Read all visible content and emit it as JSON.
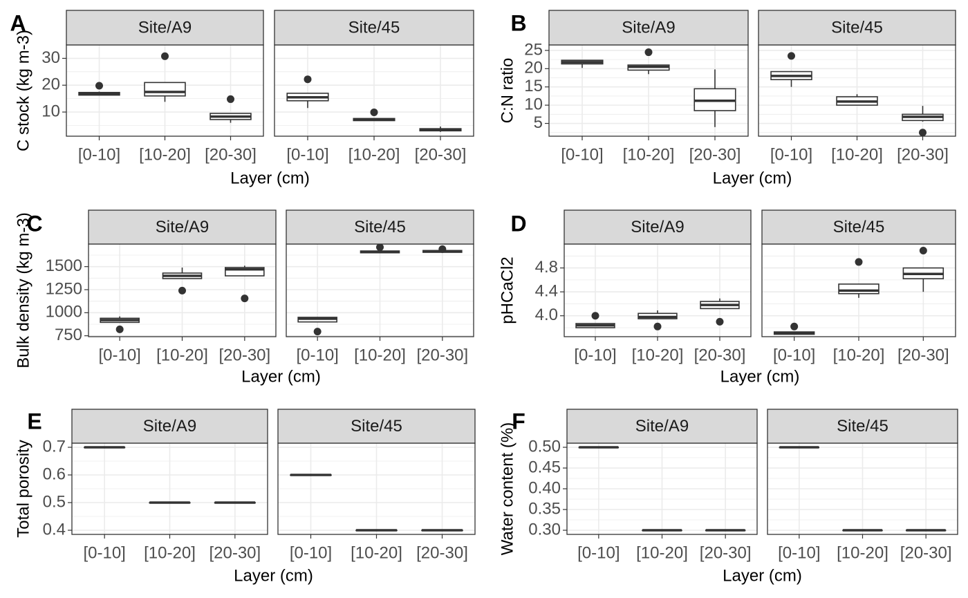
{
  "figure": {
    "x_tick_labels": [
      "[0-10]",
      "[10-20]",
      "[20-30]"
    ],
    "xlabel": "Layer (cm)",
    "facets": [
      "Site/A9",
      "Site/45"
    ]
  },
  "chart_data": [
    {
      "type": "boxplot",
      "panel_letter": "A",
      "ylabel": "C stock (kg m-3)",
      "ylim": [
        1,
        35
      ],
      "yticks": [
        10,
        20,
        30
      ],
      "facets": [
        {
          "facet": "Site/A9",
          "categories": [
            "[0-10]",
            "[10-20]",
            "[20-30]"
          ],
          "boxes": [
            {
              "whislo": 16.3,
              "q1": 16.3,
              "med": 16.8,
              "q3": 17.3,
              "whishi": 17.6,
              "outliers": [
                19.8
              ]
            },
            {
              "whislo": 13.8,
              "q1": 16.0,
              "med": 17.5,
              "q3": 21.0,
              "whishi": 21.0,
              "outliers": [
                30.8
              ]
            },
            {
              "whislo": 6.0,
              "q1": 7.2,
              "med": 8.3,
              "q3": 9.5,
              "whishi": 9.5,
              "outliers": [
                14.8
              ]
            }
          ]
        },
        {
          "facet": "Site/45",
          "categories": [
            "[0-10]",
            "[10-20]",
            "[20-30]"
          ],
          "boxes": [
            {
              "whislo": 11.5,
              "q1": 14.2,
              "med": 15.5,
              "q3": 17.0,
              "whishi": 17.0,
              "outliers": [
                22.2
              ]
            },
            {
              "whislo": 6.8,
              "q1": 6.8,
              "med": 7.2,
              "q3": 7.6,
              "whishi": 7.6,
              "outliers": [
                9.9
              ]
            },
            {
              "whislo": 2.6,
              "q1": 3.0,
              "med": 3.4,
              "q3": 3.8,
              "whishi": 4.6,
              "outliers": []
            }
          ]
        }
      ]
    },
    {
      "type": "boxplot",
      "panel_letter": "B",
      "ylabel": "C:N ratio",
      "ylim": [
        1.5,
        26.5
      ],
      "yticks": [
        5,
        10,
        15,
        20,
        25
      ],
      "facets": [
        {
          "facet": "Site/A9",
          "categories": [
            "[0-10]",
            "[10-20]",
            "[20-30]"
          ],
          "boxes": [
            {
              "whislo": 20.2,
              "q1": 21.3,
              "med": 21.8,
              "q3": 22.3,
              "whishi": 22.3,
              "outliers": []
            },
            {
              "whislo": 18.5,
              "q1": 19.6,
              "med": 20.5,
              "q3": 21.0,
              "whishi": 21.0,
              "outliers": [
                24.5
              ]
            },
            {
              "whislo": 4.0,
              "q1": 8.5,
              "med": 11.2,
              "q3": 14.5,
              "whishi": 19.8,
              "outliers": []
            }
          ]
        },
        {
          "facet": "Site/45",
          "categories": [
            "[0-10]",
            "[10-20]",
            "[20-30]"
          ],
          "boxes": [
            {
              "whislo": 15.0,
              "q1": 17.0,
              "med": 18.0,
              "q3": 19.2,
              "whishi": 19.2,
              "outliers": [
                23.5
              ]
            },
            {
              "whislo": 10.0,
              "q1": 10.0,
              "med": 11.0,
              "q3": 12.3,
              "whishi": 13.0,
              "outliers": []
            },
            {
              "whislo": 5.5,
              "q1": 5.8,
              "med": 6.8,
              "q3": 7.5,
              "whishi": 9.8,
              "outliers": [
                2.5
              ]
            }
          ]
        }
      ]
    },
    {
      "type": "boxplot",
      "panel_letter": "C",
      "ylabel": "Bulk density (kg m-3)",
      "ylim": [
        740,
        1745
      ],
      "yticks": [
        750,
        1000,
        1250,
        1500
      ],
      "facets": [
        {
          "facet": "Site/A9",
          "categories": [
            "[0-10]",
            "[10-20]",
            "[20-30]"
          ],
          "boxes": [
            {
              "whislo": 890,
              "q1": 895,
              "med": 920,
              "q3": 940,
              "whishi": 960,
              "outliers": [
                820
              ]
            },
            {
              "whislo": 1370,
              "q1": 1370,
              "med": 1400,
              "q3": 1430,
              "whishi": 1490,
              "outliers": [
                1240
              ]
            },
            {
              "whislo": 1400,
              "q1": 1400,
              "med": 1470,
              "q3": 1490,
              "whishi": 1510,
              "outliers": [
                1155
              ]
            }
          ]
        },
        {
          "facet": "Site/45",
          "categories": [
            "[0-10]",
            "[10-20]",
            "[20-30]"
          ],
          "boxes": [
            {
              "whislo": 900,
              "q1": 900,
              "med": 935,
              "q3": 950,
              "whishi": 950,
              "outliers": [
                795
              ]
            },
            {
              "whislo": 1650,
              "q1": 1650,
              "med": 1660,
              "q3": 1670,
              "whishi": 1670,
              "outliers": [
                1710
              ]
            },
            {
              "whislo": 1655,
              "q1": 1655,
              "med": 1665,
              "q3": 1675,
              "whishi": 1675,
              "outliers": [
                1690
              ]
            }
          ]
        }
      ]
    },
    {
      "type": "boxplot",
      "panel_letter": "D",
      "ylabel": "pHCaCl2",
      "ylim": [
        3.65,
        5.2
      ],
      "yticks": [
        4.0,
        4.4,
        4.8
      ],
      "yticklabels": [
        "4.0",
        "4.4",
        "4.8"
      ],
      "facets": [
        {
          "facet": "Site/A9",
          "categories": [
            "[0-10]",
            "[10-20]",
            "[20-30]"
          ],
          "boxes": [
            {
              "whislo": 3.8,
              "q1": 3.8,
              "med": 3.84,
              "q3": 3.87,
              "whishi": 3.87,
              "outliers": [
                4.0
              ]
            },
            {
              "whislo": 3.95,
              "q1": 3.95,
              "med": 3.98,
              "q3": 4.04,
              "whishi": 4.09,
              "outliers": [
                3.82
              ]
            },
            {
              "whislo": 4.12,
              "q1": 4.12,
              "med": 4.18,
              "q3": 4.24,
              "whishi": 4.29,
              "outliers": [
                3.9
              ]
            }
          ]
        },
        {
          "facet": "Site/45",
          "categories": [
            "[0-10]",
            "[10-20]",
            "[20-30]"
          ],
          "boxes": [
            {
              "whislo": 3.69,
              "q1": 3.69,
              "med": 3.71,
              "q3": 3.73,
              "whishi": 3.73,
              "outliers": [
                3.82
              ]
            },
            {
              "whislo": 4.3,
              "q1": 4.37,
              "med": 4.42,
              "q3": 4.53,
              "whishi": 4.53,
              "outliers": [
                4.9
              ]
            },
            {
              "whislo": 4.4,
              "q1": 4.62,
              "med": 4.7,
              "q3": 4.8,
              "whishi": 4.8,
              "outliers": [
                5.09
              ]
            }
          ]
        }
      ]
    },
    {
      "type": "boxplot",
      "panel_letter": "E",
      "ylabel": "Total porosity",
      "ylim": [
        0.385,
        0.715
      ],
      "yticks": [
        0.4,
        0.5,
        0.6,
        0.7
      ],
      "yticklabels": [
        "0.4",
        "0.5",
        "0.6",
        "0.7"
      ],
      "facets": [
        {
          "facet": "Site/A9",
          "categories": [
            "[0-10]",
            "[10-20]",
            "[20-30]"
          ],
          "boxes": [
            {
              "whislo": 0.7,
              "q1": 0.7,
              "med": 0.7,
              "q3": 0.7,
              "whishi": 0.7,
              "outliers": []
            },
            {
              "whislo": 0.5,
              "q1": 0.5,
              "med": 0.5,
              "q3": 0.5,
              "whishi": 0.5,
              "outliers": []
            },
            {
              "whislo": 0.5,
              "q1": 0.5,
              "med": 0.5,
              "q3": 0.5,
              "whishi": 0.5,
              "outliers": []
            }
          ]
        },
        {
          "facet": "Site/45",
          "categories": [
            "[0-10]",
            "[10-20]",
            "[20-30]"
          ],
          "boxes": [
            {
              "whislo": 0.6,
              "q1": 0.6,
              "med": 0.6,
              "q3": 0.6,
              "whishi": 0.6,
              "outliers": []
            },
            {
              "whislo": 0.4,
              "q1": 0.4,
              "med": 0.4,
              "q3": 0.4,
              "whishi": 0.4,
              "outliers": []
            },
            {
              "whislo": 0.4,
              "q1": 0.4,
              "med": 0.4,
              "q3": 0.4,
              "whishi": 0.4,
              "outliers": []
            }
          ]
        }
      ]
    },
    {
      "type": "boxplot",
      "panel_letter": "F",
      "ylabel": "Water content (%)",
      "ylim": [
        0.29,
        0.51
      ],
      "yticks": [
        0.3,
        0.35,
        0.4,
        0.45,
        0.5
      ],
      "yticklabels": [
        "0.30",
        "0.35",
        "0.40",
        "0.45",
        "0.50"
      ],
      "facets": [
        {
          "facet": "Site/A9",
          "categories": [
            "[0-10]",
            "[10-20]",
            "[20-30]"
          ],
          "boxes": [
            {
              "whislo": 0.5,
              "q1": 0.5,
              "med": 0.5,
              "q3": 0.5,
              "whishi": 0.5,
              "outliers": []
            },
            {
              "whislo": 0.3,
              "q1": 0.3,
              "med": 0.3,
              "q3": 0.3,
              "whishi": 0.3,
              "outliers": []
            },
            {
              "whislo": 0.3,
              "q1": 0.3,
              "med": 0.3,
              "q3": 0.3,
              "whishi": 0.3,
              "outliers": []
            }
          ]
        },
        {
          "facet": "Site/45",
          "categories": [
            "[0-10]",
            "[10-20]",
            "[20-30]"
          ],
          "boxes": [
            {
              "whislo": 0.5,
              "q1": 0.5,
              "med": 0.5,
              "q3": 0.5,
              "whishi": 0.5,
              "outliers": []
            },
            {
              "whislo": 0.3,
              "q1": 0.3,
              "med": 0.3,
              "q3": 0.3,
              "whishi": 0.3,
              "outliers": []
            },
            {
              "whislo": 0.3,
              "q1": 0.3,
              "med": 0.3,
              "q3": 0.3,
              "whishi": 0.3,
              "outliers": []
            }
          ]
        }
      ]
    }
  ]
}
